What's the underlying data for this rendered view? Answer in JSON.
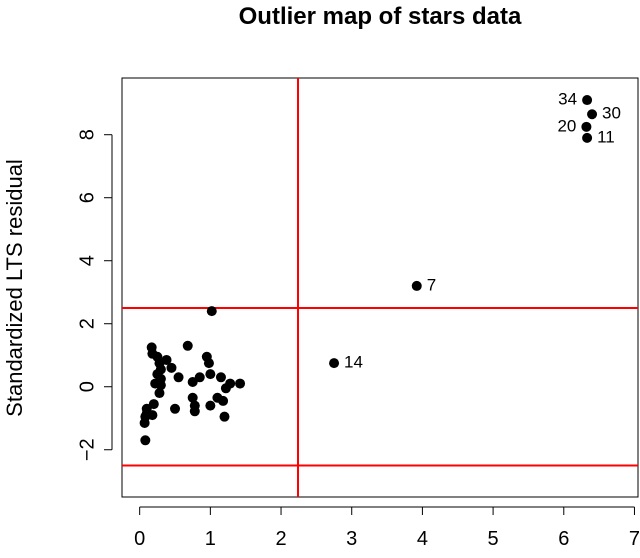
{
  "chart_data": {
    "type": "scatter",
    "title": "Outlier map of stars data",
    "xlabel": "",
    "ylabel": "Standardized LTS residual",
    "xlim": [
      -0.25,
      7.05
    ],
    "ylim": [
      -3.5,
      9.8
    ],
    "xticks": [
      0,
      1,
      2,
      3,
      4,
      5,
      6,
      7
    ],
    "yticks": [
      -2,
      0,
      2,
      4,
      6,
      8
    ],
    "tick_labels_x": [
      "0",
      "1",
      "2",
      "3",
      "4",
      "5",
      "6",
      "7"
    ],
    "tick_labels_y": [
      "−2",
      "0",
      "2",
      "4",
      "6",
      "8"
    ],
    "grid": false,
    "marker_color": "#000000",
    "cutoff_color": "#ff0000",
    "cutoffs": {
      "vertical_x": 2.24,
      "horizontal_y": [
        2.5,
        -2.5
      ]
    },
    "points": [
      {
        "x": 0.08,
        "y": -1.7
      },
      {
        "x": 0.07,
        "y": -1.15
      },
      {
        "x": 0.08,
        "y": -0.95
      },
      {
        "x": 0.1,
        "y": -0.7
      },
      {
        "x": 0.1,
        "y": -0.85
      },
      {
        "x": 0.18,
        "y": -0.9
      },
      {
        "x": 0.2,
        "y": -0.55
      },
      {
        "x": 0.17,
        "y": 1.25
      },
      {
        "x": 0.18,
        "y": 1.05
      },
      {
        "x": 0.25,
        "y": 0.95
      },
      {
        "x": 0.28,
        "y": 0.75
      },
      {
        "x": 0.3,
        "y": 0.55
      },
      {
        "x": 0.3,
        "y": 0.25
      },
      {
        "x": 0.25,
        "y": 0.4
      },
      {
        "x": 0.22,
        "y": 0.1
      },
      {
        "x": 0.3,
        "y": 0.05
      },
      {
        "x": 0.28,
        "y": -0.2
      },
      {
        "x": 0.38,
        "y": 0.85
      },
      {
        "x": 0.45,
        "y": 0.6
      },
      {
        "x": 0.5,
        "y": -0.7
      },
      {
        "x": 0.55,
        "y": 0.3
      },
      {
        "x": 0.68,
        "y": 1.3
      },
      {
        "x": 0.75,
        "y": 0.15
      },
      {
        "x": 0.75,
        "y": -0.35
      },
      {
        "x": 0.78,
        "y": -0.6
      },
      {
        "x": 0.78,
        "y": -0.78
      },
      {
        "x": 0.85,
        "y": 0.3
      },
      {
        "x": 0.95,
        "y": 0.95
      },
      {
        "x": 0.98,
        "y": 0.75
      },
      {
        "x": 1.0,
        "y": 0.4
      },
      {
        "x": 1.0,
        "y": -0.6
      },
      {
        "x": 1.1,
        "y": -0.35
      },
      {
        "x": 1.15,
        "y": 0.3
      },
      {
        "x": 1.18,
        "y": -0.45
      },
      {
        "x": 1.2,
        "y": -0.95
      },
      {
        "x": 1.22,
        "y": -0.05
      },
      {
        "x": 1.28,
        "y": 0.1
      },
      {
        "x": 1.42,
        "y": 0.1
      },
      {
        "x": 1.02,
        "y": 2.4
      },
      {
        "x": 2.75,
        "y": 0.75,
        "label": "14"
      },
      {
        "x": 3.92,
        "y": 3.2,
        "label": "7"
      },
      {
        "x": 6.33,
        "y": 9.1,
        "label": "34"
      },
      {
        "x": 6.4,
        "y": 8.65,
        "label": "30"
      },
      {
        "x": 6.32,
        "y": 8.25,
        "label": "20"
      },
      {
        "x": 6.33,
        "y": 7.9,
        "label": "11"
      }
    ]
  }
}
